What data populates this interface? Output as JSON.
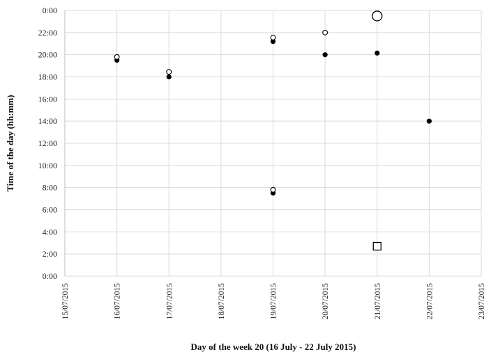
{
  "chart_data": {
    "type": "scatter",
    "xlabel": "Day of the week 20 (16 July - 22 July 2015)",
    "ylabel": "Time of the day (hh:mm)",
    "x_categories": [
      "15/07/2015",
      "16/07/2015",
      "17/07/2015",
      "18/07/2015",
      "19/07/2015",
      "20/07/2015",
      "21/07/2015",
      "22/07/2015",
      "23/07/2015"
    ],
    "y_ticks": [
      "0:00",
      "2:00",
      "4:00",
      "6:00",
      "8:00",
      "10:00",
      "12:00",
      "14:00",
      "16:00",
      "18:00",
      "20:00",
      "22:00",
      "0:00"
    ],
    "ylim": [
      0,
      24
    ],
    "grid": true,
    "legend": "none",
    "colors": {
      "filled": "#000000",
      "hollow_stroke": "#000000",
      "hollow_fill": "#ffffff",
      "grid": "#d9d9d9"
    },
    "series": [
      {
        "marker": "filled-circle",
        "points": [
          {
            "x": "16/07/2015",
            "y": 19.5
          },
          {
            "x": "17/07/2015",
            "y": 18.0
          },
          {
            "x": "19/07/2015",
            "y": 21.2
          },
          {
            "x": "19/07/2015",
            "y": 7.5
          },
          {
            "x": "20/07/2015",
            "y": 20.0
          },
          {
            "x": "21/07/2015",
            "y": 20.15
          },
          {
            "x": "22/07/2015",
            "y": 14.0
          }
        ]
      },
      {
        "marker": "hollow-circle",
        "points": [
          {
            "x": "16/07/2015",
            "y": 19.8
          },
          {
            "x": "17/07/2015",
            "y": 18.45
          },
          {
            "x": "19/07/2015",
            "y": 21.55
          },
          {
            "x": "19/07/2015",
            "y": 7.8
          },
          {
            "x": "20/07/2015",
            "y": 22.0
          }
        ]
      },
      {
        "marker": "large-hollow-circle",
        "points": [
          {
            "x": "21/07/2015",
            "y": 23.5
          }
        ]
      },
      {
        "marker": "hollow-square",
        "points": [
          {
            "x": "21/07/2015",
            "y": 2.7
          }
        ]
      }
    ]
  }
}
